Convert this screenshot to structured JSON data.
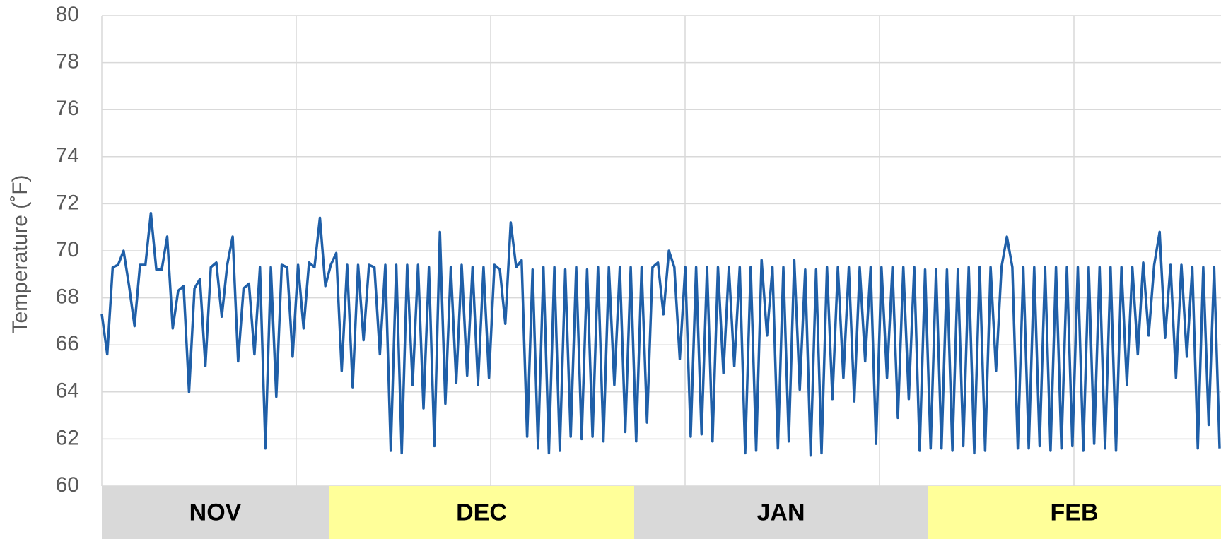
{
  "chart_data": {
    "type": "line",
    "y_label": "Temperature (˚F)",
    "month_labels": [
      "NOV",
      "DEC",
      "JAN",
      "FEB"
    ],
    "ylim": [
      60,
      80
    ],
    "yticks": [
      60,
      62,
      64,
      66,
      68,
      70,
      72,
      74,
      76,
      78,
      80
    ],
    "grid": true,
    "series": [
      {
        "color": "#1f5fa8",
        "values": [
          67.3,
          65.6,
          69.3,
          69.4,
          70,
          68.5,
          66.8,
          69.4,
          69.4,
          71.6,
          69.2,
          69.2,
          70.6,
          66.7,
          68.3,
          68.5,
          64,
          68.4,
          68.8,
          65.1,
          69.3,
          69.5,
          67.2,
          69.4,
          70.6,
          65.3,
          68.4,
          68.6,
          65.6,
          69.3,
          61.6,
          69.3,
          63.8,
          69.4,
          69.3,
          65.5,
          69.4,
          66.7,
          69.5,
          69.3,
          71.4,
          68.5,
          69.4,
          69.9,
          64.9,
          69.4,
          64.2,
          69.4,
          66.2,
          69.4,
          69.3,
          65.6,
          69.4,
          61.5,
          69.4,
          61.4,
          69.4,
          64.3,
          69.4,
          63.3,
          69.3,
          61.7,
          70.8,
          63.5,
          69.3,
          64.4,
          69.4,
          64.7,
          69.3,
          64.3,
          69.3,
          64.6,
          69.4,
          69.2,
          66.9,
          71.2,
          69.3,
          69.6,
          62.1,
          69.2,
          61.6,
          69.3,
          61.4,
          69.3,
          61.5,
          69.2,
          62.1,
          69.3,
          62,
          69.2,
          62.1,
          69.3,
          61.9,
          69.3,
          64.3,
          69.3,
          62.3,
          69.3,
          61.9,
          69.3,
          62.7,
          69.3,
          69.5,
          67.3,
          70,
          69.3,
          65.4,
          69.3,
          62.1,
          69.3,
          62.2,
          69.3,
          61.9,
          69.3,
          64.8,
          69.3,
          65.1,
          69.3,
          61.4,
          69.3,
          61.5,
          69.6,
          66.4,
          69.3,
          61.6,
          69.3,
          61.9,
          69.6,
          64.1,
          69.2,
          61.3,
          69.2,
          61.4,
          69.3,
          63.7,
          69.3,
          64.6,
          69.3,
          63.6,
          69.3,
          65.3,
          69.3,
          61.8,
          69.3,
          64.6,
          69.3,
          62.9,
          69.3,
          63.7,
          69.3,
          61.5,
          69.2,
          61.6,
          69.2,
          61.6,
          69.2,
          61.5,
          69.2,
          61.7,
          69.3,
          61.4,
          69.3,
          61.5,
          69.3,
          64.9,
          69.3,
          70.6,
          69.3,
          61.6,
          69.3,
          61.6,
          69.3,
          61.7,
          69.3,
          61.5,
          69.3,
          61.6,
          69.3,
          61.7,
          69.3,
          61.5,
          69.3,
          61.8,
          69.3,
          61.6,
          69.3,
          61.5,
          69.3,
          64.3,
          69.3,
          65.6,
          69.5,
          66.4,
          69.4,
          70.8,
          66.3,
          69.4,
          64.6,
          69.4,
          65.5,
          69.3,
          61.6,
          69.3,
          62.6,
          69.3,
          61.6
        ]
      }
    ]
  }
}
